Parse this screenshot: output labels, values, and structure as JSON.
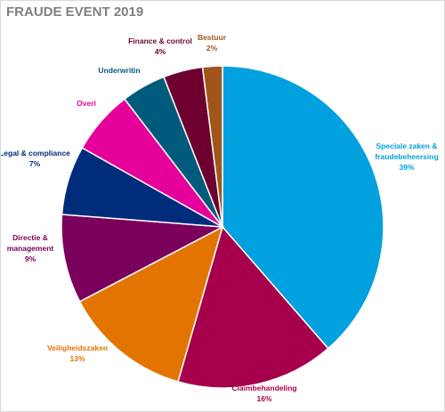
{
  "chart_data": {
    "type": "pie",
    "title": "FRAUDE EVENT 2019",
    "slices": [
      {
        "label_lines": [
          "Speciale zaken &",
          "fraudebeheersing"
        ],
        "pct_label": "39%",
        "value": 39,
        "color": "#00A1DE"
      },
      {
        "label_lines": [
          "Claimbehandeling"
        ],
        "pct_label": "16%",
        "value": 16,
        "color": "#A6004D"
      },
      {
        "label_lines": [
          "Veiligheidszaken"
        ],
        "pct_label": "13%",
        "value": 13,
        "color": "#E47400"
      },
      {
        "label_lines": [
          "Directie &",
          "management"
        ],
        "pct_label": "9%",
        "value": 9,
        "color": "#7B005B"
      },
      {
        "label_lines": [
          "Legal & compliance"
        ],
        "pct_label": "7%",
        "value": 7,
        "color": "#002C7C"
      },
      {
        "label_lines": [
          "Overi"
        ],
        "pct_label": "",
        "value": 6.5,
        "color": "#E5009B"
      },
      {
        "label_lines": [
          "Underwritin"
        ],
        "pct_label": "",
        "value": 4.5,
        "color": "#005A7B"
      },
      {
        "label_lines": [
          "Finance & control"
        ],
        "pct_label": "4%",
        "value": 4,
        "color": "#6E0030"
      },
      {
        "label_lines": [
          "Bestuur"
        ],
        "pct_label": "2%",
        "value": 2,
        "color": "#A0561A"
      }
    ]
  }
}
